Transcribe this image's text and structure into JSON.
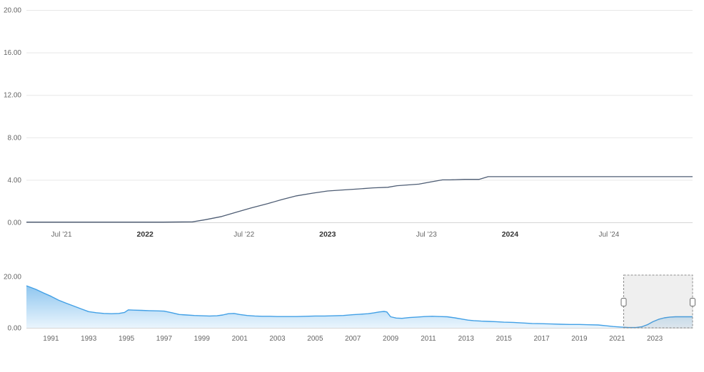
{
  "page": {
    "background": "#ffffff"
  },
  "chart_data": [
    {
      "id": "main",
      "type": "line",
      "title": "",
      "xlabel": "",
      "ylabel": "",
      "line_color": "#4e5d74",
      "ylim": [
        0,
        20
      ],
      "x_range": [
        2021.35,
        2025.0
      ],
      "grid": true,
      "yticks": [
        {
          "v": 0,
          "label": "0.00"
        },
        {
          "v": 4,
          "label": "4.00"
        },
        {
          "v": 8,
          "label": "8.00"
        },
        {
          "v": 12,
          "label": "12.00"
        },
        {
          "v": 16,
          "label": "16.00"
        },
        {
          "v": 20,
          "label": "20.00"
        }
      ],
      "xticks": [
        {
          "x": 2021.542,
          "label": "Jul ’21",
          "bold": false
        },
        {
          "x": 2022.0,
          "label": "2022",
          "bold": true
        },
        {
          "x": 2022.542,
          "label": "Jul ’22",
          "bold": false
        },
        {
          "x": 2023.0,
          "label": "2023",
          "bold": true
        },
        {
          "x": 2023.542,
          "label": "Jul ’23",
          "bold": false
        },
        {
          "x": 2024.0,
          "label": "2024",
          "bold": true
        },
        {
          "x": 2024.542,
          "label": "Jul ’24",
          "bold": false
        }
      ],
      "x": [
        2021.35,
        2021.6,
        2021.9,
        2022.1,
        2022.26,
        2022.33,
        2022.42,
        2022.5,
        2022.58,
        2022.67,
        2022.75,
        2022.83,
        2022.92,
        2023.0,
        2023.08,
        2023.17,
        2023.25,
        2023.33,
        2023.38,
        2023.42,
        2023.5,
        2023.58,
        2023.63,
        2023.67,
        2023.75,
        2023.83,
        2023.88,
        2023.92,
        2024.0,
        2024.25,
        2024.5,
        2024.75,
        2025.0
      ],
      "values": [
        0.02,
        0.02,
        0.02,
        0.02,
        0.05,
        0.25,
        0.55,
        0.95,
        1.35,
        1.75,
        2.15,
        2.5,
        2.75,
        2.95,
        3.05,
        3.15,
        3.25,
        3.3,
        3.45,
        3.5,
        3.6,
        3.85,
        4.0,
        4.0,
        4.05,
        4.05,
        4.3,
        4.3,
        4.3,
        4.3,
        4.3,
        4.3,
        4.3
      ]
    },
    {
      "id": "navigator",
      "type": "area",
      "title": "",
      "line_color": "#42a0e6",
      "fill_top": "#8fc6ef",
      "fill_bottom": "#eaf5fd",
      "ylim": [
        0,
        20
      ],
      "x_range": [
        1989.7,
        2025.0
      ],
      "grid": false,
      "yticks": [
        {
          "v": 20,
          "label": "20.00",
          "grid": false
        },
        {
          "v": 0,
          "label": "0.00",
          "grid": false
        }
      ],
      "xticks": [
        {
          "x": 1991,
          "label": "1991",
          "bold": false
        },
        {
          "x": 1993,
          "label": "1993",
          "bold": false
        },
        {
          "x": 1995,
          "label": "1995",
          "bold": false
        },
        {
          "x": 1997,
          "label": "1997",
          "bold": false
        },
        {
          "x": 1999,
          "label": "1999",
          "bold": false
        },
        {
          "x": 2001,
          "label": "2001",
          "bold": false
        },
        {
          "x": 2003,
          "label": "2003",
          "bold": false
        },
        {
          "x": 2005,
          "label": "2005",
          "bold": false
        },
        {
          "x": 2007,
          "label": "2007",
          "bold": false
        },
        {
          "x": 2009,
          "label": "2009",
          "bold": false
        },
        {
          "x": 2011,
          "label": "2011",
          "bold": false
        },
        {
          "x": 2013,
          "label": "2013",
          "bold": false
        },
        {
          "x": 2015,
          "label": "2015",
          "bold": false
        },
        {
          "x": 2017,
          "label": "2017",
          "bold": false
        },
        {
          "x": 2019,
          "label": "2019",
          "bold": false
        },
        {
          "x": 2021,
          "label": "2021",
          "bold": false
        },
        {
          "x": 2023,
          "label": "2023",
          "bold": false
        }
      ],
      "x": [
        1989.7,
        1990.2,
        1990.6,
        1991.0,
        1991.4,
        1991.8,
        1992.2,
        1992.6,
        1993.0,
        1993.4,
        1993.8,
        1994.2,
        1994.6,
        1994.9,
        1995.1,
        1995.4,
        1995.8,
        1996.2,
        1996.6,
        1997.0,
        1997.4,
        1997.8,
        1998.2,
        1998.6,
        1999.0,
        1999.4,
        1999.8,
        2000.1,
        2000.4,
        2000.7,
        2001.0,
        2001.4,
        2001.8,
        2002.2,
        2002.6,
        2003.0,
        2003.5,
        2004.0,
        2004.5,
        2005.0,
        2005.5,
        2006.0,
        2006.5,
        2007.0,
        2007.4,
        2007.8,
        2008.1,
        2008.4,
        2008.65,
        2008.8,
        2009.0,
        2009.3,
        2009.6,
        2010.0,
        2010.4,
        2010.8,
        2011.2,
        2011.6,
        2012.0,
        2012.4,
        2012.8,
        2013.1,
        2013.4,
        2013.8,
        2014.2,
        2014.6,
        2015.0,
        2015.5,
        2016.0,
        2016.5,
        2017.0,
        2017.5,
        2018.0,
        2018.5,
        2019.0,
        2019.5,
        2020.0,
        2020.4,
        2020.8,
        2021.2,
        2021.6,
        2022.0,
        2022.3,
        2022.6,
        2022.9,
        2023.2,
        2023.5,
        2023.8,
        2024.1,
        2024.5,
        2025.0
      ],
      "values": [
        16.4,
        15.0,
        13.6,
        12.3,
        10.8,
        9.6,
        8.5,
        7.4,
        6.3,
        5.9,
        5.6,
        5.5,
        5.6,
        6.0,
        7.0,
        6.9,
        6.8,
        6.7,
        6.6,
        6.5,
        5.9,
        5.2,
        5.0,
        4.8,
        4.7,
        4.6,
        4.7,
        5.0,
        5.5,
        5.6,
        5.2,
        4.8,
        4.6,
        4.5,
        4.5,
        4.4,
        4.4,
        4.4,
        4.5,
        4.6,
        4.6,
        4.7,
        4.8,
        5.1,
        5.3,
        5.5,
        5.8,
        6.2,
        6.4,
        6.2,
        4.3,
        3.8,
        3.7,
        4.0,
        4.2,
        4.4,
        4.5,
        4.4,
        4.3,
        3.9,
        3.4,
        3.0,
        2.8,
        2.6,
        2.5,
        2.4,
        2.2,
        2.1,
        1.9,
        1.7,
        1.6,
        1.5,
        1.4,
        1.3,
        1.3,
        1.2,
        1.1,
        0.8,
        0.5,
        0.3,
        0.1,
        0.1,
        0.4,
        1.2,
        2.4,
        3.3,
        3.9,
        4.2,
        4.3,
        4.3,
        4.3
      ],
      "selection": {
        "from": 2021.35,
        "to": 2025.0
      },
      "selection_fill": "rgba(120,120,120,0.12)",
      "selection_border": "#8c8c8c",
      "handle_fill": "#ffffff",
      "handle_border": "#6e6e6e"
    }
  ]
}
